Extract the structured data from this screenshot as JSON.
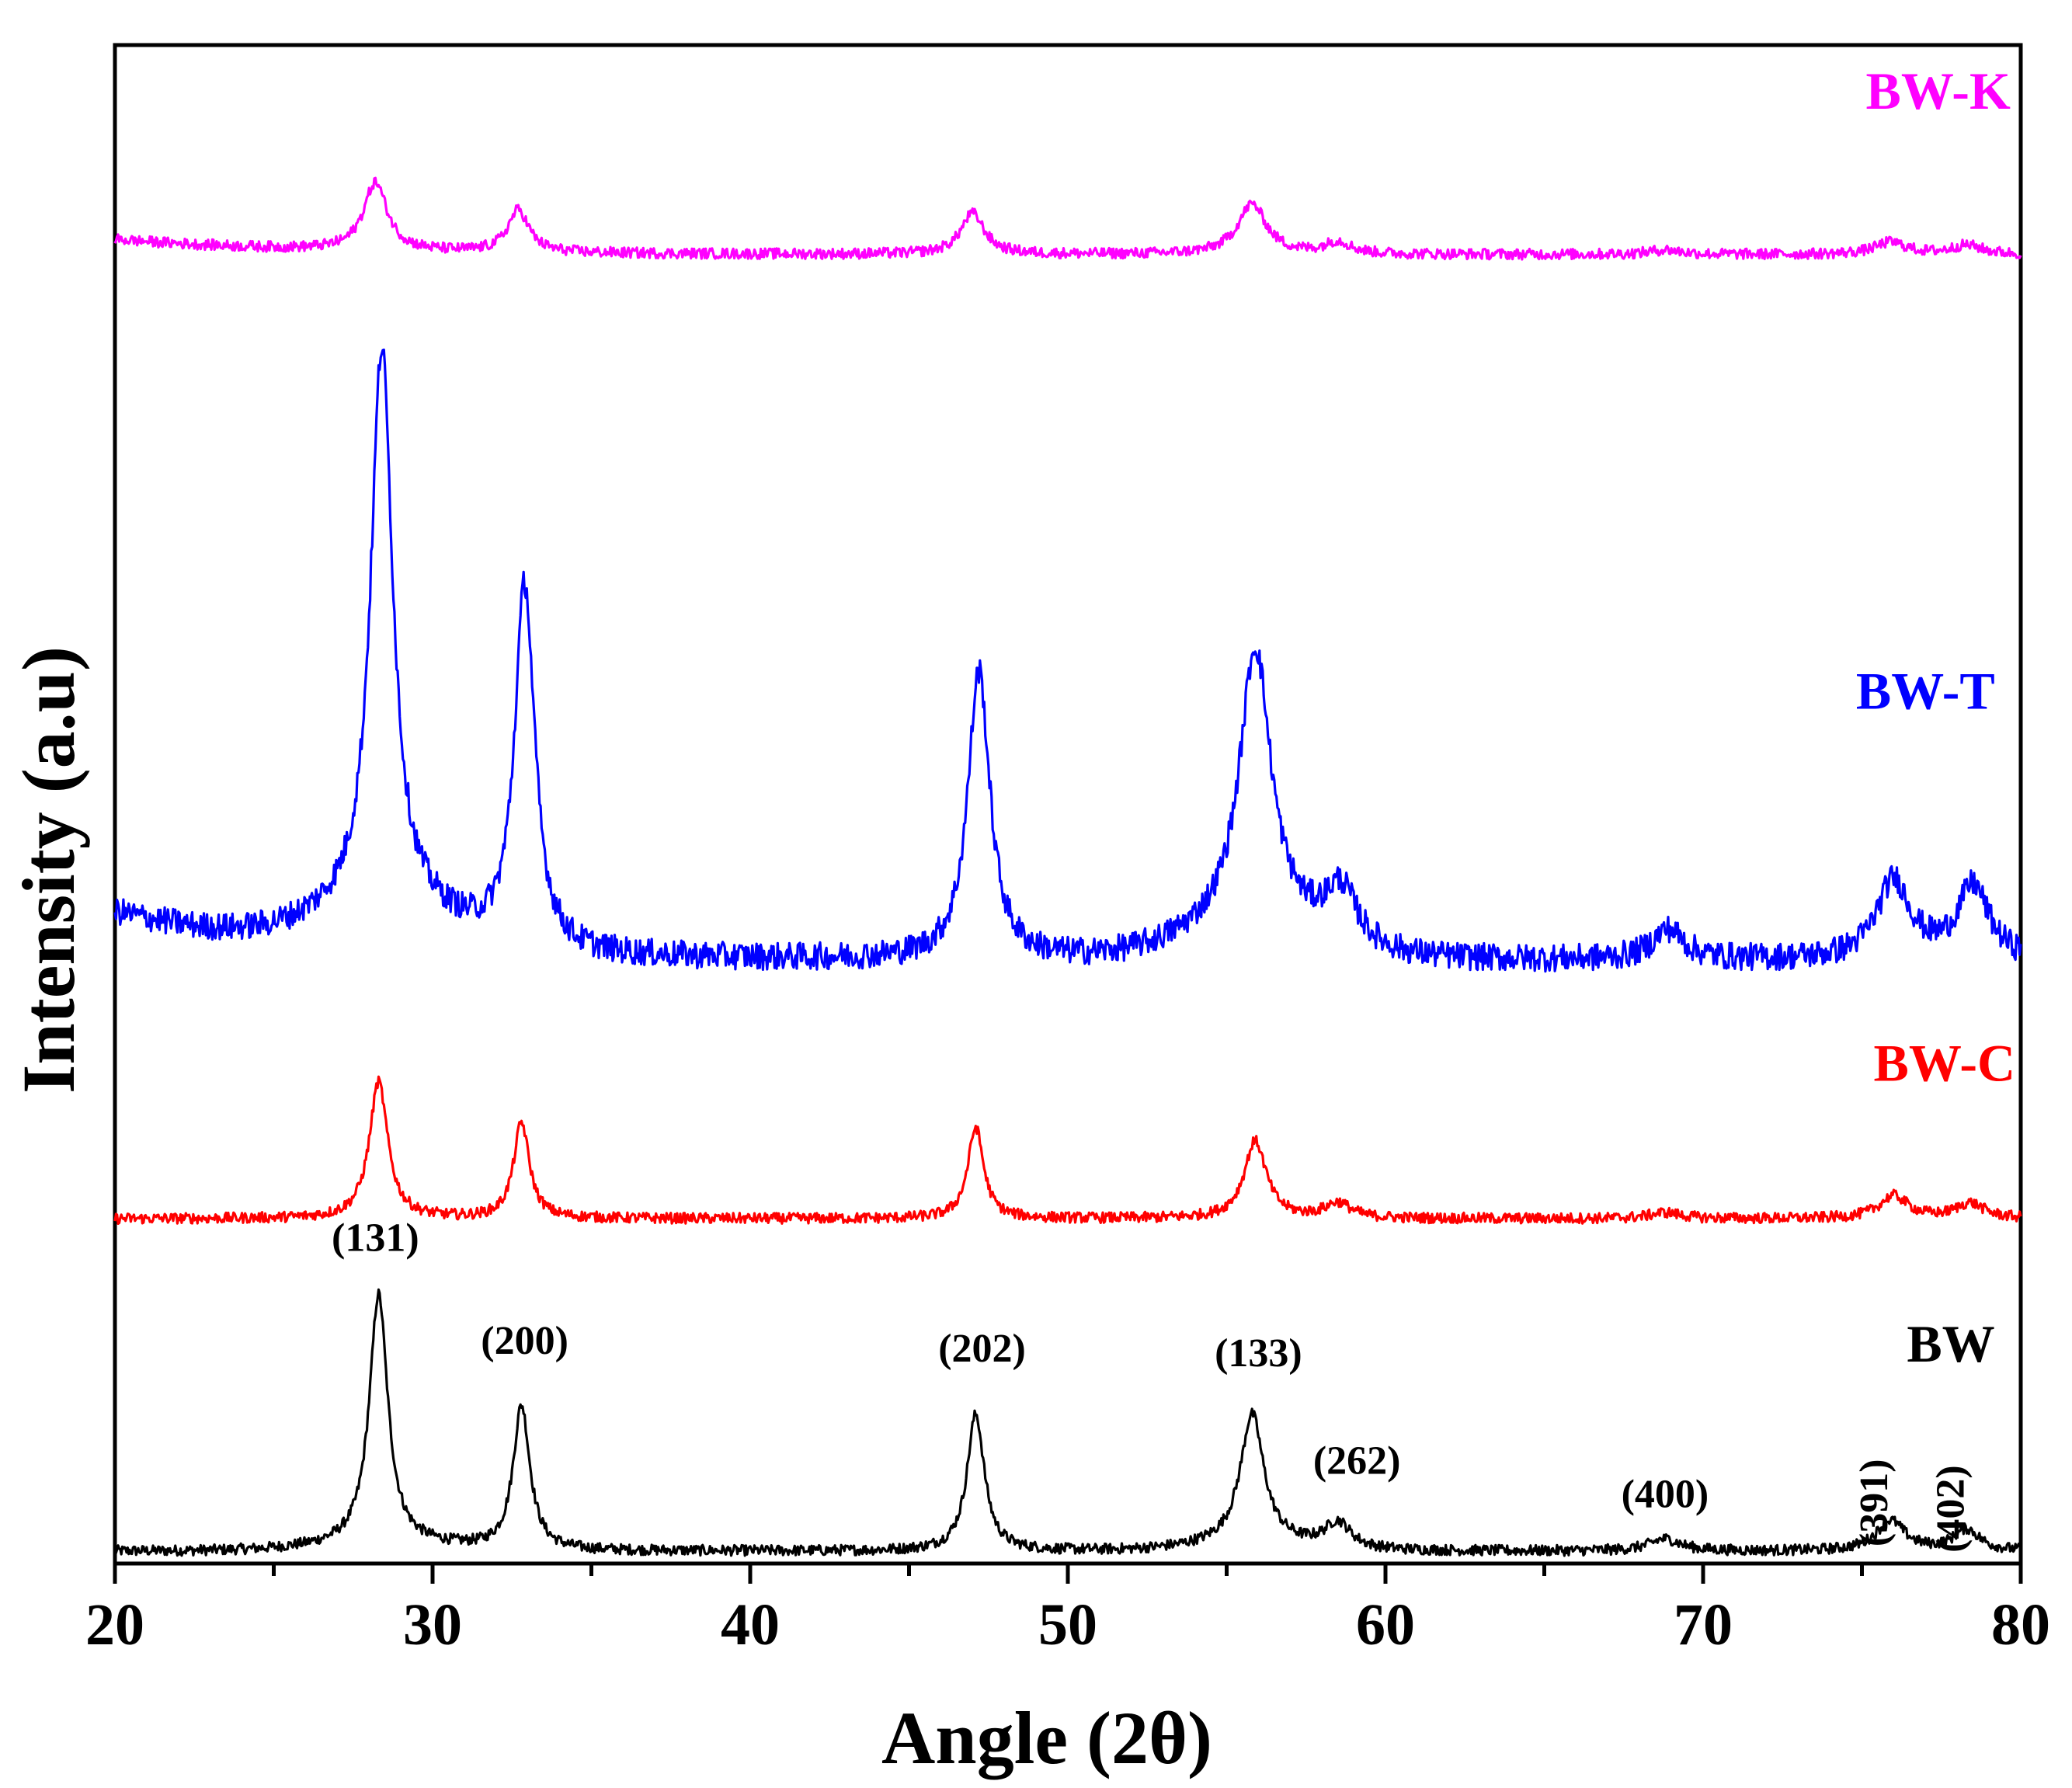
{
  "chart_data": {
    "type": "line",
    "title": "",
    "xlabel": "Angle (2θ)",
    "ylabel": "Intensity (a.u)",
    "xlim": [
      20,
      80
    ],
    "ylim": [
      0,
      100
    ],
    "xticks": [
      20,
      30,
      40,
      50,
      60,
      70,
      80
    ],
    "yticks_shown": false,
    "grid": false,
    "legend": "inline labels at right",
    "peak_positions": [
      28.3,
      32.8,
      47.1,
      55.9,
      58.5,
      68.8,
      75.9,
      78.3
    ],
    "series": [
      {
        "name": "BW",
        "color": "#000000",
        "baseline": 0.8,
        "noise": 0.35,
        "peaks": [
          [
            28.3,
            16.5,
            0.35
          ],
          [
            32.8,
            9.5,
            0.32
          ],
          [
            47.1,
            9.0,
            0.33
          ],
          [
            55.8,
            8.6,
            0.45
          ],
          [
            58.5,
            1.7,
            0.5
          ],
          [
            68.8,
            0.8,
            0.6
          ],
          [
            75.9,
            2.0,
            0.55
          ],
          [
            78.3,
            1.4,
            0.5
          ]
        ],
        "broad": [
          [
            28.5,
            0.4,
            3.0
          ],
          [
            55.8,
            0.4,
            2.5
          ]
        ]
      },
      {
        "name": "BW-C",
        "color": "#ff0000",
        "baseline": 22.7,
        "noise": 0.35,
        "peaks": [
          [
            28.3,
            9.0,
            0.35
          ],
          [
            32.8,
            6.3,
            0.3
          ],
          [
            47.1,
            6.0,
            0.3
          ],
          [
            55.9,
            5.1,
            0.42
          ],
          [
            58.5,
            1.0,
            0.5
          ],
          [
            68.8,
            0.4,
            0.6
          ],
          [
            76.0,
            1.5,
            0.55
          ],
          [
            78.4,
            1.0,
            0.55
          ]
        ],
        "broad": []
      },
      {
        "name": "BW-T",
        "color": "#0000ff",
        "baseline": 40.0,
        "noise": 0.9,
        "peaks": [
          [
            28.4,
            37.0,
            0.42
          ],
          [
            32.9,
            24.0,
            0.38
          ],
          [
            47.2,
            19.0,
            0.42
          ],
          [
            55.9,
            18.5,
            0.6
          ],
          [
            58.6,
            3.6,
            0.6
          ],
          [
            68.9,
            2.0,
            0.6
          ],
          [
            76.0,
            5.2,
            0.65
          ],
          [
            78.5,
            4.8,
            0.6
          ]
        ],
        "broad": [
          [
            28.5,
            2.5,
            3.0
          ],
          [
            55.9,
            2.0,
            3.0
          ]
        ],
        "tilt": 3.2
      },
      {
        "name": "BW-K",
        "color": "#ff00ff",
        "baseline": 86.3,
        "noise": 0.35,
        "peaks": [
          [
            28.2,
            4.5,
            0.45
          ],
          [
            32.7,
            2.8,
            0.4
          ],
          [
            47.0,
            2.7,
            0.45
          ],
          [
            55.8,
            3.3,
            0.55
          ],
          [
            58.5,
            0.8,
            0.5
          ],
          [
            68.8,
            0.3,
            0.6
          ],
          [
            75.9,
            0.8,
            0.6
          ],
          [
            78.3,
            0.6,
            0.6
          ]
        ],
        "broad": [],
        "tilt": 1.0
      }
    ],
    "series_labels": [
      {
        "name": "BW",
        "x": 77.8,
        "y": 13.3,
        "color": "#000000"
      },
      {
        "name": "BW-C",
        "x": 77.6,
        "y": 31.8,
        "color": "#ff0000"
      },
      {
        "name": "BW-T",
        "x": 77.0,
        "y": 56.3,
        "color": "#0000ff"
      },
      {
        "name": "BW-K",
        "x": 77.4,
        "y": 95.8,
        "color": "#ff00ff"
      }
    ],
    "annotations": [
      {
        "text": "(131)",
        "x": 28.2,
        "y": 20.6
      },
      {
        "text": "(200)",
        "x": 32.9,
        "y": 13.8
      },
      {
        "text": "(202)",
        "x": 47.3,
        "y": 13.3
      },
      {
        "text": "(133)",
        "x": 56.0,
        "y": 13.0
      },
      {
        "text": "(262)",
        "x": 59.1,
        "y": 5.9
      },
      {
        "text": "(400)",
        "x": 68.8,
        "y": 3.7
      },
      {
        "text": "(391)",
        "x": 75.8,
        "y": 4.0,
        "rotate": -90
      },
      {
        "text": "(402)",
        "x": 78.2,
        "y": 3.6,
        "rotate": -90
      }
    ]
  }
}
